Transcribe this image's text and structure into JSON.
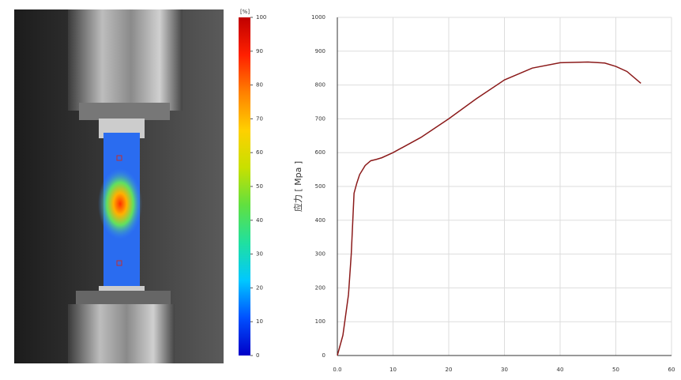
{
  "colorbar": {
    "label": "[%]",
    "lim": [
      0,
      100
    ],
    "ticks": [
      0,
      10,
      20,
      30,
      40,
      50,
      60,
      70,
      80,
      90,
      100
    ],
    "colors": [
      "#0000c8",
      "#0050ff",
      "#00c8ff",
      "#20e0a0",
      "#60e040",
      "#c8e000",
      "#ffd000",
      "#ff8000",
      "#ff2000",
      "#c00000"
    ]
  },
  "chart_data": {
    "type": "line",
    "ylabel": "应力 [ Mpa ]",
    "x": [
      0,
      1,
      2,
      2.5,
      3,
      3.5,
      4,
      5,
      6,
      7,
      8,
      10,
      15,
      20,
      25,
      30,
      35,
      40,
      45,
      48,
      50,
      52,
      54.5
    ],
    "series": [
      {
        "color": "#8b1a1a",
        "values": [
          0,
          60,
          180,
          300,
          480,
          510,
          535,
          562,
          576,
          580,
          585,
          600,
          645,
          700,
          760,
          815,
          850,
          866,
          868,
          865,
          855,
          840,
          805
        ]
      }
    ],
    "xlim": [
      0,
      60
    ],
    "ylim": [
      0,
      1000
    ],
    "xticks": [
      {
        "value": 0,
        "label": "0.0"
      },
      10,
      20,
      30,
      40,
      50,
      60
    ],
    "yticks": [
      0,
      100,
      200,
      300,
      400,
      500,
      600,
      700,
      800,
      900,
      1000
    ],
    "grid": true
  }
}
